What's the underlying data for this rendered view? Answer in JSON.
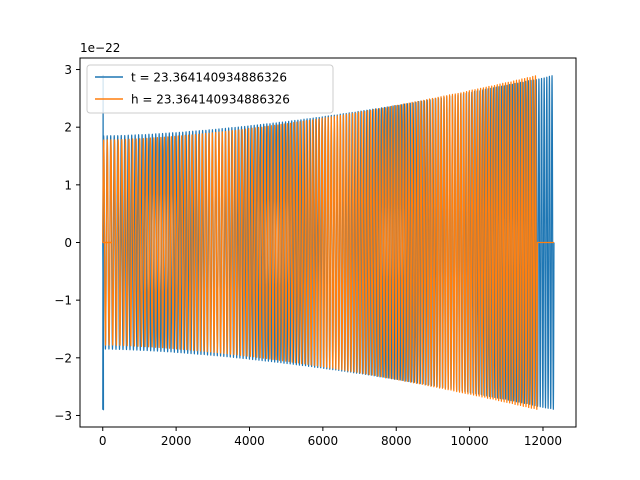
{
  "chart_data": {
    "type": "line",
    "title": "",
    "xlabel": "",
    "ylabel": "",
    "y_scale_label": "1e−22",
    "xlim": [
      -620,
      12900
    ],
    "ylim": [
      -3.2,
      3.2
    ],
    "x_ticks": [
      0,
      2000,
      4000,
      6000,
      8000,
      10000,
      12000
    ],
    "y_ticks": [
      -3,
      -2,
      -1,
      0,
      1,
      2,
      3
    ],
    "x_tick_labels": [
      "0",
      "2000",
      "4000",
      "6000",
      "8000",
      "10000",
      "12000"
    ],
    "y_tick_labels": [
      "−3",
      "−2",
      "−1",
      "0",
      "1",
      "2",
      "3"
    ],
    "grid": false,
    "legend_position": "top-left",
    "series": [
      {
        "name": "t = 23.364140934886326",
        "color": "#1f77b4",
        "x_start": 0,
        "x_end": 12300,
        "amplitude_start": 1.85,
        "amplitude_end": 2.9,
        "initial_spike": 2.9,
        "cycles": 150
      },
      {
        "name": "h = 23.364140934886326",
        "color": "#ff7f0e",
        "x_start": 0,
        "x_end": 11850,
        "amplitude_start": 1.78,
        "amplitude_end": 2.9,
        "cycles": 140,
        "tail_end": 12300
      }
    ]
  }
}
